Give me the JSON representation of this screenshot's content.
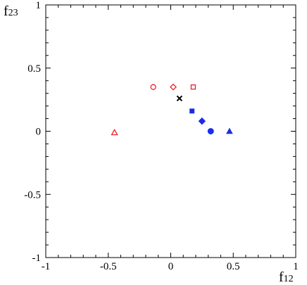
{
  "chart_data": {
    "type": "scatter",
    "title": "",
    "xlabel": "f",
    "xlabel_sub": "12",
    "ylabel": "f",
    "ylabel_sub": "23",
    "xlim": [
      -1,
      1
    ],
    "ylim": [
      -1,
      1
    ],
    "x_major_ticks": [
      -1,
      -0.5,
      0,
      0.5,
      1
    ],
    "x_tick_labels": [
      "-1",
      "-0.5",
      "0",
      "0.5",
      "1"
    ],
    "y_major_ticks": [
      -1,
      -0.5,
      0,
      0.5,
      1
    ],
    "y_tick_labels": [
      "-1",
      "-0.5",
      "0",
      "0.5",
      "1"
    ],
    "grid": false,
    "points": [
      {
        "x": -0.45,
        "y": -0.01,
        "marker": "triangle-open",
        "color": "#e8202a"
      },
      {
        "x": -0.14,
        "y": 0.35,
        "marker": "circle-open",
        "color": "#e8202a"
      },
      {
        "x": 0.02,
        "y": 0.35,
        "marker": "diamond-open",
        "color": "#e8202a"
      },
      {
        "x": 0.18,
        "y": 0.35,
        "marker": "square-open",
        "color": "#e8202a"
      },
      {
        "x": 0.07,
        "y": 0.26,
        "marker": "cross",
        "color": "#000000"
      },
      {
        "x": 0.17,
        "y": 0.16,
        "marker": "square-filled",
        "color": "#1a2ee8"
      },
      {
        "x": 0.25,
        "y": 0.08,
        "marker": "diamond-filled",
        "color": "#1a2ee8"
      },
      {
        "x": 0.32,
        "y": 0.0,
        "marker": "circle-filled",
        "color": "#1a2ee8"
      },
      {
        "x": 0.47,
        "y": 0.0,
        "marker": "triangle-filled",
        "color": "#1a2ee8"
      }
    ]
  }
}
